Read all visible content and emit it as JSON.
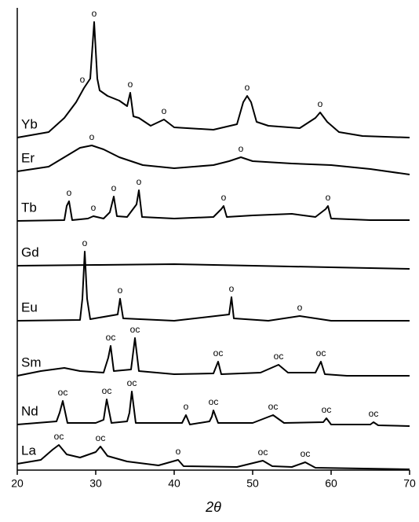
{
  "chart_data": {
    "type": "line",
    "x_label": "2θ",
    "xlim": [
      20,
      70
    ],
    "xticks": [
      20,
      30,
      40,
      50,
      60,
      70
    ],
    "ylim": [
      0,
      588
    ],
    "series": [
      {
        "name": "Yb",
        "color": "#000000",
        "x": [
          20,
          24,
          26,
          27.5,
          28.5,
          29.3,
          29.8,
          30.2,
          30.5,
          31.5,
          33,
          34,
          34.4,
          34.8,
          35.5,
          37,
          38.7,
          40,
          45,
          48,
          48.8,
          49.3,
          49.8,
          50.5,
          52,
          56,
          58,
          58.6,
          59.5,
          61,
          64,
          70
        ],
        "values": [
          423,
          430,
          448,
          468,
          486,
          498,
          570,
          498,
          483,
          476,
          470,
          463,
          480,
          450,
          448,
          438,
          446,
          436,
          433,
          440,
          468,
          476,
          468,
          443,
          438,
          435,
          448,
          455,
          443,
          430,
          425,
          423
        ],
        "peaks": [
          {
            "x": 28.3,
            "label": "o"
          },
          {
            "x": 29.8,
            "label": "o"
          },
          {
            "x": 34.4,
            "label": "o"
          },
          {
            "x": 38.7,
            "label": "o"
          },
          {
            "x": 49.3,
            "label": "o"
          },
          {
            "x": 58.6,
            "label": "o"
          }
        ]
      },
      {
        "name": "Er",
        "color": "#000000",
        "x": [
          20,
          24,
          26,
          28,
          29.5,
          31,
          33,
          36,
          40,
          45,
          47,
          48.5,
          50,
          55,
          60,
          65,
          70
        ],
        "values": [
          380,
          386,
          398,
          410,
          413,
          408,
          398,
          388,
          384,
          388,
          393,
          398,
          393,
          390,
          388,
          383,
          376
        ],
        "peaks": [
          {
            "x": 29.5,
            "label": "o"
          },
          {
            "x": 48.5,
            "label": "o"
          }
        ]
      },
      {
        "name": "Tb",
        "color": "#000000",
        "x": [
          20,
          26,
          26.3,
          26.6,
          27,
          29,
          29.7,
          31,
          31.8,
          32.3,
          32.7,
          34,
          35.2,
          35.5,
          35.9,
          40,
          45,
          46,
          46.3,
          46.7,
          50,
          55,
          58,
          59.3,
          59.6,
          60,
          65,
          70
        ],
        "values": [
          317,
          318,
          336,
          342,
          318,
          320,
          323,
          320,
          328,
          348,
          323,
          322,
          338,
          356,
          322,
          320,
          322,
          332,
          336,
          322,
          324,
          326,
          322,
          332,
          336,
          320,
          318,
          318
        ],
        "peaks": [
          {
            "x": 26.6,
            "label": "o"
          },
          {
            "x": 29.7,
            "label": "o"
          },
          {
            "x": 32.3,
            "label": "o"
          },
          {
            "x": 35.5,
            "label": "o"
          },
          {
            "x": 46.3,
            "label": "o"
          },
          {
            "x": 59.6,
            "label": "o"
          }
        ]
      },
      {
        "name": "Gd",
        "color": "#000000",
        "x": [
          20,
          30,
          40,
          50,
          60,
          70
        ],
        "values": [
          260,
          261,
          262,
          260,
          258,
          256
        ],
        "peaks": []
      },
      {
        "name": "Eu",
        "color": "#000000",
        "x": [
          20,
          28,
          28.3,
          28.6,
          28.9,
          29.3,
          32.8,
          33.1,
          33.5,
          40,
          47,
          47.3,
          47.6,
          52,
          56,
          60,
          70
        ],
        "values": [
          190,
          191,
          218,
          278,
          218,
          192,
          198,
          218,
          193,
          190,
          198,
          220,
          193,
          190,
          196,
          190,
          190
        ],
        "peaks": [
          {
            "x": 28.6,
            "label": "o"
          },
          {
            "x": 33.1,
            "label": "o"
          },
          {
            "x": 47.3,
            "label": "o"
          },
          {
            "x": 56,
            "label": "o"
          }
        ]
      },
      {
        "name": "Sm",
        "color": "#000000",
        "x": [
          20,
          23,
          26,
          28,
          31,
          31.6,
          31.9,
          32.3,
          34.5,
          35,
          35.5,
          40,
          45,
          45.6,
          46,
          51,
          53.3,
          54.5,
          58,
          58.7,
          59.2,
          62,
          70
        ],
        "values": [
          120,
          126,
          130,
          126,
          124,
          143,
          158,
          126,
          128,
          168,
          126,
          122,
          123,
          138,
          122,
          124,
          134,
          124,
          124,
          138,
          122,
          120,
          120
        ],
        "peaks": [
          {
            "x": 31.9,
            "label": "oc"
          },
          {
            "x": 35,
            "label": "oc"
          },
          {
            "x": 45.6,
            "label": "oc"
          },
          {
            "x": 53.3,
            "label": "oc"
          },
          {
            "x": 58.7,
            "label": "oc"
          }
        ]
      },
      {
        "name": "Nd",
        "color": "#000000",
        "x": [
          20,
          25,
          25.4,
          25.8,
          26.4,
          30,
          31,
          31.4,
          32,
          34,
          34.3,
          34.6,
          35.1,
          41,
          41.5,
          42,
          44.5,
          44.8,
          45,
          45.6,
          50,
          52.6,
          54,
          59,
          59.4,
          60,
          65,
          65.4,
          66,
          70
        ],
        "values": [
          58,
          62,
          73,
          88,
          60,
          60,
          64,
          90,
          60,
          62,
          73,
          100,
          60,
          60,
          70,
          58,
          62,
          68,
          76,
          60,
          60,
          70,
          60,
          61,
          66,
          58,
          58,
          61,
          57,
          56
        ],
        "peaks": [
          {
            "x": 25.8,
            "label": "oc"
          },
          {
            "x": 31.4,
            "label": "oc"
          },
          {
            "x": 34.6,
            "label": "oc"
          },
          {
            "x": 41.5,
            "label": "o"
          },
          {
            "x": 45,
            "label": "oc"
          },
          {
            "x": 52.6,
            "label": "oc"
          },
          {
            "x": 59.4,
            "label": "oc"
          },
          {
            "x": 65.4,
            "label": "oc"
          }
        ]
      },
      {
        "name": "La",
        "color": "#000000",
        "x": [
          20,
          23,
          24.5,
          25.3,
          26.3,
          28,
          30,
          30.6,
          31.5,
          34,
          38,
          40.5,
          41.2,
          48,
          51.3,
          52.5,
          55,
          56.7,
          58,
          70
        ],
        "values": [
          8,
          13,
          26,
          32,
          20,
          16,
          23,
          30,
          18,
          11,
          6,
          13,
          5,
          4,
          12,
          5,
          4,
          10,
          3,
          1
        ],
        "peaks": [
          {
            "x": 25.3,
            "label": "oc"
          },
          {
            "x": 30.6,
            "label": "oc"
          },
          {
            "x": 40.5,
            "label": "o"
          },
          {
            "x": 51.3,
            "label": "oc"
          },
          {
            "x": 56.7,
            "label": "oc"
          }
        ]
      }
    ]
  }
}
